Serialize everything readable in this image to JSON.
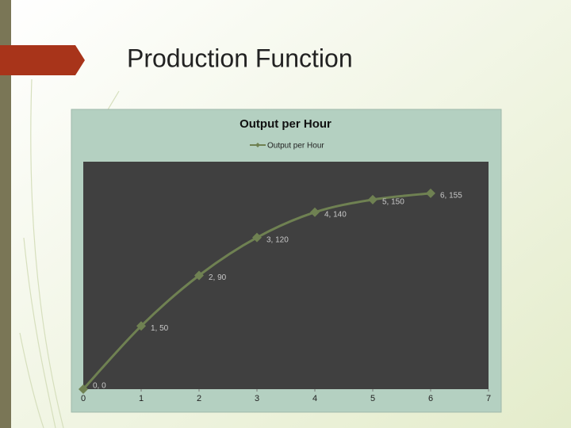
{
  "slide_title": "Production Function",
  "chart_data": {
    "type": "line",
    "title": "Output per Hour",
    "x": [
      0,
      1,
      2,
      3,
      4,
      5,
      6
    ],
    "series": [
      {
        "name": "Output per Hour",
        "color": "#6f8152",
        "values": [
          0,
          50,
          90,
          120,
          140,
          150,
          155
        ],
        "value_labels": [
          "0, 0",
          "1, 50",
          "2, 90",
          "3, 120",
          "4, 140",
          "5, 150",
          "6, 155"
        ]
      }
    ],
    "xlim": [
      0,
      7
    ],
    "xticks": [
      0,
      1,
      2,
      3,
      4,
      5,
      6,
      7
    ],
    "ylim": [
      0,
      180
    ],
    "smooth": true,
    "legend": "top"
  }
}
